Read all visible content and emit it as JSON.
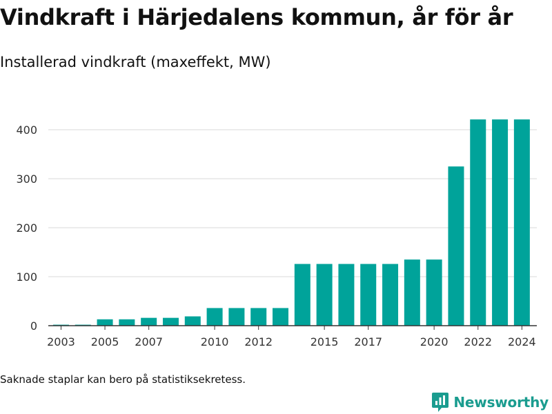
{
  "header": {
    "title": "Vindkraft i Härjedalens kommun, år för år",
    "subtitle": "Installerad vindkraft (maxeffekt, MW)"
  },
  "footnote": "Saknade staplar kan bero på statistiksekretess.",
  "brand": {
    "name": "Newsworthy",
    "icon": "newsworthy-logo-icon"
  },
  "colors": {
    "bar": "#00a39a",
    "grid": "#d9d9d9",
    "axis": "#333333",
    "brand": "#1a9c8f"
  },
  "chart_data": {
    "type": "bar",
    "x": [
      2003,
      2004,
      2005,
      2006,
      2007,
      2008,
      2009,
      2010,
      2011,
      2012,
      2013,
      2014,
      2015,
      2016,
      2017,
      2018,
      2019,
      2020,
      2021,
      2022,
      2023,
      2024
    ],
    "values": [
      2,
      2,
      13,
      13,
      16,
      16,
      19,
      36,
      36,
      36,
      36,
      126,
      126,
      126,
      126,
      126,
      135,
      135,
      325,
      421,
      421,
      421
    ],
    "x_tick_labels": [
      "2003",
      "2005",
      "2007",
      "2010",
      "2012",
      "2015",
      "2017",
      "2020",
      "2022",
      "2024"
    ],
    "y_tick_labels": [
      "0",
      "100",
      "200",
      "300",
      "400"
    ],
    "ylim": [
      0,
      420
    ],
    "grid": true,
    "xlabel": "",
    "ylabel": ""
  }
}
